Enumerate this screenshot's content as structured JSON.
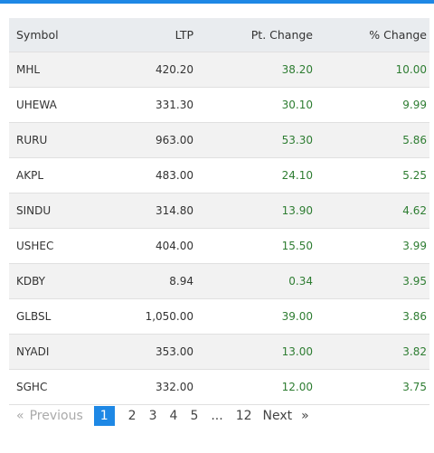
{
  "table": {
    "header": [
      "Symbol",
      "LTP",
      "Pt. Change",
      "% Change"
    ],
    "rows": [
      [
        "MHL",
        "420.20",
        "38.20",
        "10.00"
      ],
      [
        "UHEWA",
        "331.30",
        "30.10",
        "9.99"
      ],
      [
        "RURU",
        "963.00",
        "53.30",
        "5.86"
      ],
      [
        "AKPL",
        "483.00",
        "24.10",
        "5.25"
      ],
      [
        "SINDU",
        "314.80",
        "13.90",
        "4.62"
      ],
      [
        "USHEC",
        "404.00",
        "15.50",
        "3.99"
      ],
      [
        "KDBY",
        "8.94",
        "0.34",
        "3.95"
      ],
      [
        "GLBSL",
        "1,050.00",
        "39.00",
        "3.86"
      ],
      [
        "NYADI",
        "353.00",
        "13.00",
        "3.82"
      ],
      [
        "SGHC",
        "332.00",
        "12.00",
        "3.75"
      ]
    ]
  },
  "pagination": {
    "first": "«",
    "previous": "Previous",
    "pages": [
      "1",
      "2",
      "3",
      "4",
      "5",
      "...",
      "12"
    ],
    "active": 0,
    "next": "Next",
    "last": "»"
  }
}
